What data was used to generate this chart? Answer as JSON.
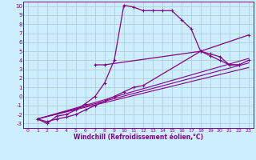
{
  "xlabel": "Windchill (Refroidissement éolien,°C)",
  "bg_color": "#cceeff",
  "grid_color": "#aacccc",
  "line_color": "#880088",
  "xlim": [
    -0.5,
    23.5
  ],
  "ylim": [
    -3.5,
    10.5
  ],
  "xticks": [
    0,
    1,
    2,
    3,
    4,
    5,
    6,
    7,
    8,
    9,
    10,
    11,
    12,
    13,
    14,
    15,
    16,
    17,
    18,
    19,
    20,
    21,
    22,
    23
  ],
  "yticks": [
    -3,
    -2,
    -1,
    0,
    1,
    2,
    3,
    4,
    5,
    6,
    7,
    8,
    9,
    10
  ],
  "curve1_x": [
    1,
    2,
    3,
    4,
    5,
    6,
    7,
    8,
    9,
    10,
    11,
    12,
    13,
    14,
    15,
    16,
    17,
    18,
    23
  ],
  "curve1_y": [
    -2.5,
    -3.0,
    -2.2,
    -2.0,
    -1.5,
    -0.8,
    0.0,
    1.5,
    4.0,
    10.1,
    9.9,
    9.5,
    9.5,
    9.5,
    9.5,
    8.5,
    7.5,
    5.0,
    6.8
  ],
  "curve2_x": [
    7,
    8,
    18,
    19,
    20,
    21,
    22
  ],
  "curve2_y": [
    3.5,
    3.5,
    5.0,
    4.7,
    4.4,
    3.5,
    3.5
  ],
  "curve3_x": [
    1,
    2,
    3,
    4,
    5,
    6,
    7,
    8,
    9,
    10,
    11,
    12,
    18,
    19,
    20,
    21,
    22,
    23
  ],
  "curve3_y": [
    -2.5,
    -2.8,
    -2.5,
    -2.3,
    -2.0,
    -1.5,
    -1.0,
    -0.5,
    0.0,
    0.5,
    1.0,
    1.2,
    5.0,
    4.5,
    4.0,
    3.5,
    3.5,
    4.0
  ],
  "line1_x": [
    1,
    23
  ],
  "line1_y": [
    -2.5,
    4.2
  ],
  "line2_x": [
    1,
    23
  ],
  "line2_y": [
    -2.5,
    3.7
  ],
  "line3_x": [
    1,
    23
  ],
  "line3_y": [
    -2.5,
    3.2
  ]
}
